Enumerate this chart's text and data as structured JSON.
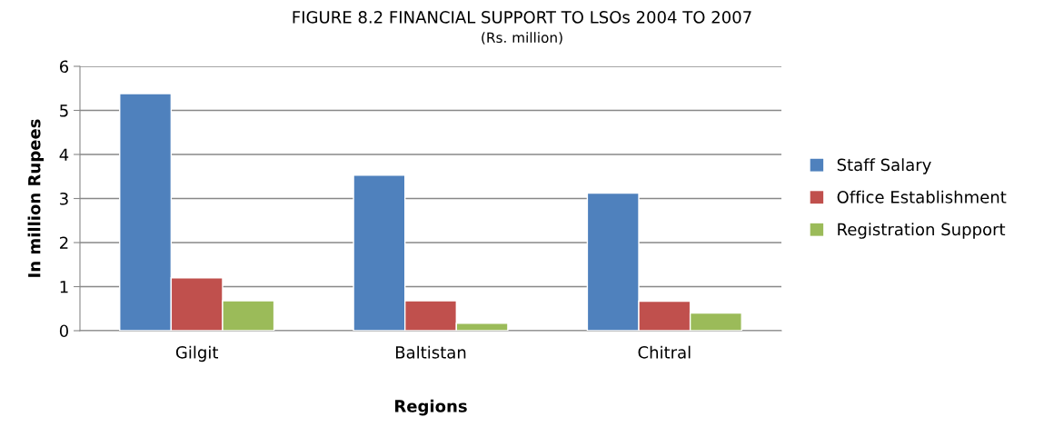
{
  "chart_data": {
    "type": "bar",
    "title": "FIGURE 8.2 FINANCIAL SUPPORT TO LSOs 2004 TO 2007",
    "subtitle": "(Rs. million)",
    "xlabel": "Regions",
    "ylabel": "In million Rupees",
    "categories": [
      "Gilgit",
      "Baltistan",
      "Chitral"
    ],
    "series": [
      {
        "name": "Staff Salary",
        "color": "#4f81bd",
        "values": [
          5.38,
          3.53,
          3.12
        ]
      },
      {
        "name": "Office Establishment",
        "color": "#c0504d",
        "values": [
          1.2,
          0.68,
          0.67
        ]
      },
      {
        "name": "Registration Support",
        "color": "#9bbb59",
        "values": [
          0.68,
          0.17,
          0.4
        ]
      }
    ],
    "ylim": [
      0,
      6
    ],
    "yticks": [
      0,
      1,
      2,
      3,
      4,
      5,
      6
    ],
    "grid": "y",
    "legend": "right"
  }
}
